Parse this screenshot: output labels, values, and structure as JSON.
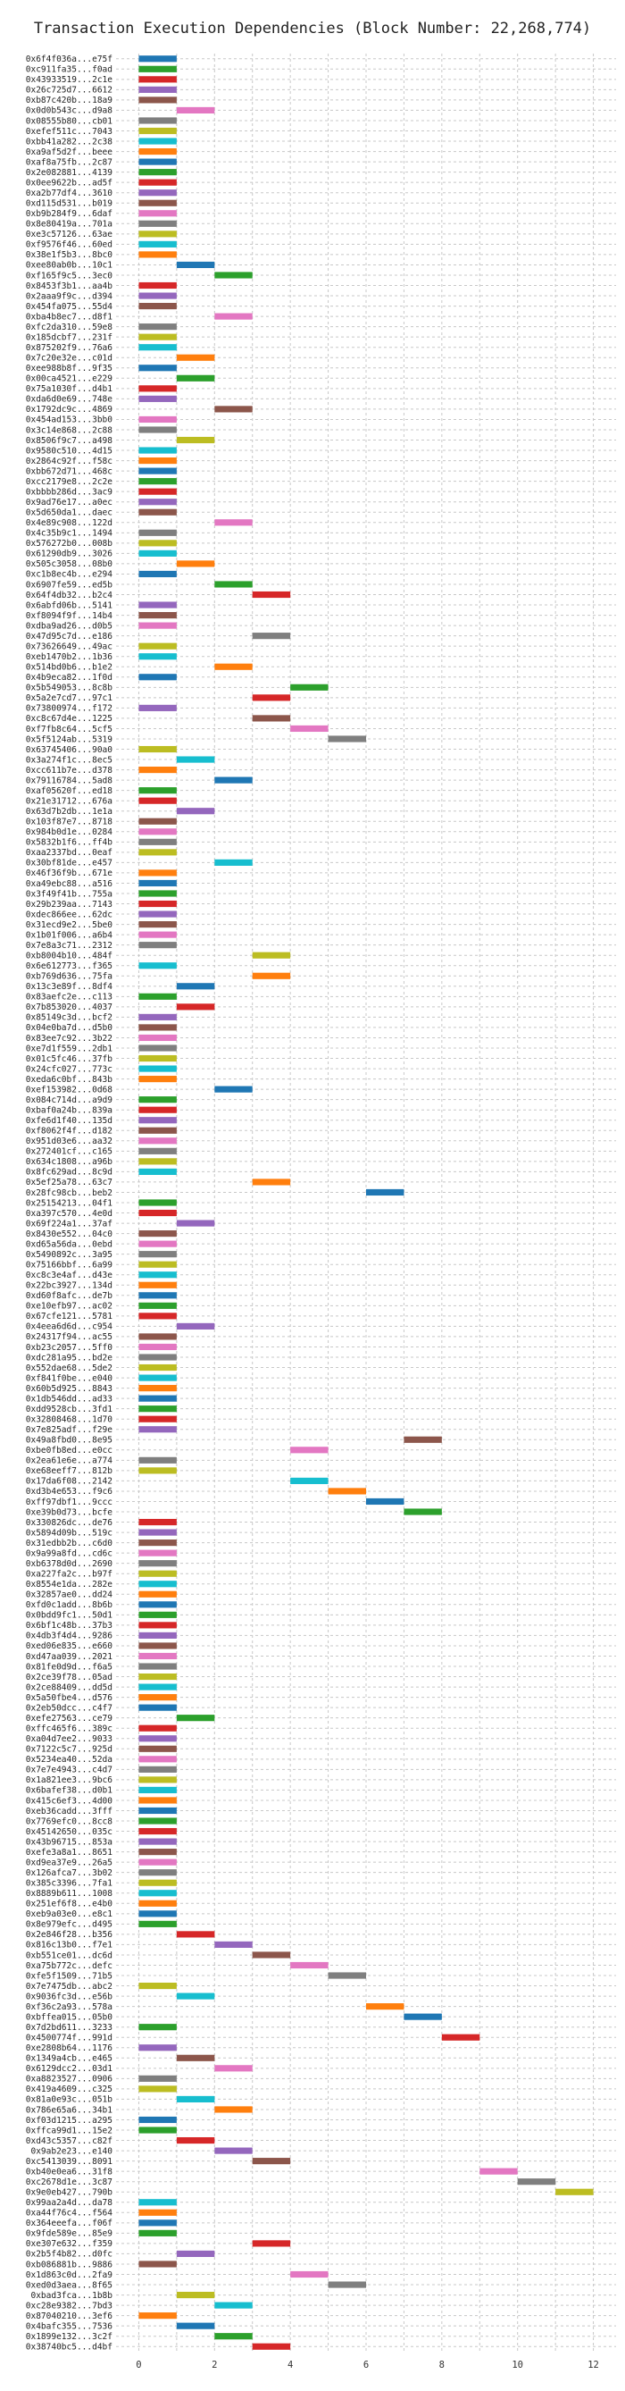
{
  "chart_data": {
    "type": "bar",
    "title": "Transaction Execution Dependencies (Block Number: 22,268,774)",
    "xlabel": "",
    "ylabel": "",
    "x_ticks": [
      0,
      2,
      4,
      6,
      8,
      10,
      12
    ],
    "xlim": [
      -0.6,
      12.6
    ],
    "grid": true,
    "bar_width": 1,
    "palette": [
      "#1f77b4",
      "#2ca02c",
      "#d62728",
      "#9467bd",
      "#8c564b",
      "#e377c2",
      "#7f7f7f",
      "#bcbd22",
      "#17becf",
      "#ff7f0e"
    ],
    "transactions": [
      {
        "hash": "0x6f4f036a...e75f",
        "start": 0
      },
      {
        "hash": "0xc911fa35...f0ad",
        "start": 0
      },
      {
        "hash": "0x43933519...2c1e",
        "start": 0
      },
      {
        "hash": "0x26c725d7...6612",
        "start": 0
      },
      {
        "hash": "0xb87c420b...18a9",
        "start": 0
      },
      {
        "hash": "0x0d0b543c...d9a8",
        "start": 1
      },
      {
        "hash": "0x08555b80...cb01",
        "start": 0
      },
      {
        "hash": "0xefef511c...7043",
        "start": 0
      },
      {
        "hash": "0xbb41a282...2c38",
        "start": 0
      },
      {
        "hash": "0xa9af5d2f...beee",
        "start": 0
      },
      {
        "hash": "0xaf8a75fb...2c87",
        "start": 0
      },
      {
        "hash": "0x2e082881...4139",
        "start": 0
      },
      {
        "hash": "0x0ee9622b...ad5f",
        "start": 0
      },
      {
        "hash": "0xa2b77df4...3610",
        "start": 0
      },
      {
        "hash": "0xd115d531...b019",
        "start": 0
      },
      {
        "hash": "0xb9b284f9...6daf",
        "start": 0
      },
      {
        "hash": "0x8e80419a...701a",
        "start": 0
      },
      {
        "hash": "0xe3c57126...63ae",
        "start": 0
      },
      {
        "hash": "0xf9576f46...60ed",
        "start": 0
      },
      {
        "hash": "0x38e1f5b3...8bc0",
        "start": 0
      },
      {
        "hash": "0xee80ab0b...10c1",
        "start": 1
      },
      {
        "hash": "0xf165f9c5...3ec0",
        "start": 2
      },
      {
        "hash": "0x8453f3b1...aa4b",
        "start": 0
      },
      {
        "hash": "0x2aaa9f9c...d394",
        "start": 0
      },
      {
        "hash": "0x454fa075...55d4",
        "start": 0
      },
      {
        "hash": "0xba4b8ec7...d8f1",
        "start": 2
      },
      {
        "hash": "0xfc2da310...59e8",
        "start": 0
      },
      {
        "hash": "0x185dcbf7...231f",
        "start": 0
      },
      {
        "hash": "0x875202f9...76a6",
        "start": 0
      },
      {
        "hash": "0x7c20e32e...c01d",
        "start": 1
      },
      {
        "hash": "0xee988b8f...9f35",
        "start": 0
      },
      {
        "hash": "0x00ca4521...e229",
        "start": 1
      },
      {
        "hash": "0x75a1030f...d4b1",
        "start": 0
      },
      {
        "hash": "0xda6d0e69...748e",
        "start": 0
      },
      {
        "hash": "0x1792dc9c...4869",
        "start": 2
      },
      {
        "hash": "0x454ad153...3bb0",
        "start": 0
      },
      {
        "hash": "0x3c14e868...2c88",
        "start": 0
      },
      {
        "hash": "0x8506f9c7...a498",
        "start": 1
      },
      {
        "hash": "0x9580c510...4d15",
        "start": 0
      },
      {
        "hash": "0x2864c92f...f58c",
        "start": 0
      },
      {
        "hash": "0xbb672d71...468c",
        "start": 0
      },
      {
        "hash": "0xcc2179e8...2c2e",
        "start": 0
      },
      {
        "hash": "0xbbbb286d...3ac9",
        "start": 0
      },
      {
        "hash": "0x9ad76e17...a0ec",
        "start": 0
      },
      {
        "hash": "0x5d650da1...daec",
        "start": 0
      },
      {
        "hash": "0x4e89c908...122d",
        "start": 2
      },
      {
        "hash": "0x4c35b9c1...1494",
        "start": 0
      },
      {
        "hash": "0x576272b0...008b",
        "start": 0
      },
      {
        "hash": "0x61290db9...3026",
        "start": 0
      },
      {
        "hash": "0x505c3058...08b0",
        "start": 1
      },
      {
        "hash": "0xc1b8ec4b...e294",
        "start": 0
      },
      {
        "hash": "0x6907fe59...ed5b",
        "start": 2
      },
      {
        "hash": "0x64f4db32...b2c4",
        "start": 3
      },
      {
        "hash": "0x6abfd06b...5141",
        "start": 0
      },
      {
        "hash": "0xf8094f9f...14b4",
        "start": 0
      },
      {
        "hash": "0xdba9ad26...d0b5",
        "start": 0
      },
      {
        "hash": "0x47d95c7d...e186",
        "start": 3
      },
      {
        "hash": "0x73626649...49ac",
        "start": 0
      },
      {
        "hash": "0xeb1470b2...1b36",
        "start": 0
      },
      {
        "hash": "0x514bd0b6...b1e2",
        "start": 2
      },
      {
        "hash": "0x4b9eca82...1f0d",
        "start": 0
      },
      {
        "hash": "0x5b549053...8c8b",
        "start": 4
      },
      {
        "hash": "0x5a2e7cd7...97c1",
        "start": 3
      },
      {
        "hash": "0x73800974...f172",
        "start": 0
      },
      {
        "hash": "0xc8c67d4e...1225",
        "start": 3
      },
      {
        "hash": "0xf7fb8c64...5cf5",
        "start": 4
      },
      {
        "hash": "0x5f5124ab...5319",
        "start": 5
      },
      {
        "hash": "0x63745406...90a0",
        "start": 0
      },
      {
        "hash": "0x3a274f1c...8ec5",
        "start": 1
      },
      {
        "hash": "0xcc611b7e...d378",
        "start": 0
      },
      {
        "hash": "0x79116784...5ad8",
        "start": 2
      },
      {
        "hash": "0xaf05620f...ed18",
        "start": 0
      },
      {
        "hash": "0x21e31712...676a",
        "start": 0
      },
      {
        "hash": "0x63d7b2db...1e1a",
        "start": 1
      },
      {
        "hash": "0x103f87e7...8718",
        "start": 0
      },
      {
        "hash": "0x984b0d1e...0284",
        "start": 0
      },
      {
        "hash": "0x5832b1f6...ff4b",
        "start": 0
      },
      {
        "hash": "0xaa2337bd...0eaf",
        "start": 0
      },
      {
        "hash": "0x30bf81de...e457",
        "start": 2
      },
      {
        "hash": "0x46f36f9b...671e",
        "start": 0
      },
      {
        "hash": "0xa49ebc88...a516",
        "start": 0
      },
      {
        "hash": "0x3f49f41b...755a",
        "start": 0
      },
      {
        "hash": "0x29b239aa...7143",
        "start": 0
      },
      {
        "hash": "0xdec866ee...62dc",
        "start": 0
      },
      {
        "hash": "0x31ecd9e2...5be0",
        "start": 0
      },
      {
        "hash": "0x1b01f006...a6b4",
        "start": 0
      },
      {
        "hash": "0x7e8a3c71...2312",
        "start": 0
      },
      {
        "hash": "0xb8004b10...484f",
        "start": 3
      },
      {
        "hash": "0x6e612773...f365",
        "start": 0
      },
      {
        "hash": "0xb769d636...75fa",
        "start": 3
      },
      {
        "hash": "0x13c3e89f...8df4",
        "start": 1
      },
      {
        "hash": "0x83aefc2e...c113",
        "start": 0
      },
      {
        "hash": "0x7b853020...4037",
        "start": 1
      },
      {
        "hash": "0x85149c3d...bcf2",
        "start": 0
      },
      {
        "hash": "0x04e0ba7d...d5b0",
        "start": 0
      },
      {
        "hash": "0x83ee7c92...3b22",
        "start": 0
      },
      {
        "hash": "0xe7d1f559...2db1",
        "start": 0
      },
      {
        "hash": "0x01c5fc46...37fb",
        "start": 0
      },
      {
        "hash": "0x24cfc027...773c",
        "start": 0
      },
      {
        "hash": "0xeda6c0bf...843b",
        "start": 0
      },
      {
        "hash": "0xef153982...0d68",
        "start": 2
      },
      {
        "hash": "0x084c714d...a9d9",
        "start": 0
      },
      {
        "hash": "0xbaf0a24b...839a",
        "start": 0
      },
      {
        "hash": "0xfe6d1f40...135d",
        "start": 0
      },
      {
        "hash": "0xf8062f4f...d182",
        "start": 0
      },
      {
        "hash": "0x951d03e6...aa32",
        "start": 0
      },
      {
        "hash": "0x272401cf...c165",
        "start": 0
      },
      {
        "hash": "0x634c1808...a96b",
        "start": 0
      },
      {
        "hash": "0x8fc629ad...8c9d",
        "start": 0
      },
      {
        "hash": "0x5ef25a78...63c7",
        "start": 3
      },
      {
        "hash": "0x28fc98cb...beb2",
        "start": 6
      },
      {
        "hash": "0x25154213...04f1",
        "start": 0
      },
      {
        "hash": "0xa397c570...4e0d",
        "start": 0
      },
      {
        "hash": "0x69f224a1...37af",
        "start": 1
      },
      {
        "hash": "0x8430e552...04c0",
        "start": 0
      },
      {
        "hash": "0xd65a56da...0ebd",
        "start": 0
      },
      {
        "hash": "0x5490892c...3a95",
        "start": 0
      },
      {
        "hash": "0x75166bbf...6a99",
        "start": 0
      },
      {
        "hash": "0xc8c3e4af...d43e",
        "start": 0
      },
      {
        "hash": "0x22bc3927...134d",
        "start": 0
      },
      {
        "hash": "0xd60f8afc...de7b",
        "start": 0
      },
      {
        "hash": "0xe10efb97...ac02",
        "start": 0
      },
      {
        "hash": "0x67cfe121...5781",
        "start": 0
      },
      {
        "hash": "0x4eea6d6d...c954",
        "start": 1
      },
      {
        "hash": "0x24317f94...ac55",
        "start": 0
      },
      {
        "hash": "0xb23c2057...5ff0",
        "start": 0
      },
      {
        "hash": "0xdc281a95...bd2e",
        "start": 0
      },
      {
        "hash": "0x552dae68...5de2",
        "start": 0
      },
      {
        "hash": "0xf841f0be...e040",
        "start": 0
      },
      {
        "hash": "0x60b5d925...8843",
        "start": 0
      },
      {
        "hash": "0x1db546dd...ad33",
        "start": 0
      },
      {
        "hash": "0xdd9528cb...3fd1",
        "start": 0
      },
      {
        "hash": "0x32808468...1d70",
        "start": 0
      },
      {
        "hash": "0x7e825adf...f29e",
        "start": 0
      },
      {
        "hash": "0x49a8fbd0...8e95",
        "start": 7
      },
      {
        "hash": "0xbe0fb8ed...e0cc",
        "start": 4
      },
      {
        "hash": "0x2ea61e6e...a774",
        "start": 0
      },
      {
        "hash": "0xe68eeff7...812b",
        "start": 0
      },
      {
        "hash": "0x17da6f08...2142",
        "start": 4
      },
      {
        "hash": "0xd3b4e653...f9c6",
        "start": 5
      },
      {
        "hash": "0xff97dbf1...9ccc",
        "start": 6
      },
      {
        "hash": "0xe39b0d73...bcfe",
        "start": 7
      },
      {
        "hash": "0x330826dc...de76",
        "start": 0
      },
      {
        "hash": "0x5894d09b...519c",
        "start": 0
      },
      {
        "hash": "0x31edbb2b...c6d0",
        "start": 0
      },
      {
        "hash": "0x9a99a8fd...cd6c",
        "start": 0
      },
      {
        "hash": "0xb6378d0d...2690",
        "start": 0
      },
      {
        "hash": "0xa227fa2c...b97f",
        "start": 0
      },
      {
        "hash": "0x8554e1da...282e",
        "start": 0
      },
      {
        "hash": "0x32857ae0...dd24",
        "start": 0
      },
      {
        "hash": "0xfd0c1add...8b6b",
        "start": 0
      },
      {
        "hash": "0x0bdd9fc1...50d1",
        "start": 0
      },
      {
        "hash": "0x6bf1c48b...37b3",
        "start": 0
      },
      {
        "hash": "0x4db3f4d4...9286",
        "start": 0
      },
      {
        "hash": "0xed06e835...e660",
        "start": 0
      },
      {
        "hash": "0xd47aa039...2021",
        "start": 0
      },
      {
        "hash": "0x81fe0d9d...f6a5",
        "start": 0
      },
      {
        "hash": "0x2ce39f78...05ad",
        "start": 0
      },
      {
        "hash": "0x2ce88409...dd5d",
        "start": 0
      },
      {
        "hash": "0x5a50fbe4...d576",
        "start": 0
      },
      {
        "hash": "0x2eb50dcc...c4f7",
        "start": 0
      },
      {
        "hash": "0xefe27563...ce79",
        "start": 1
      },
      {
        "hash": "0xffc465f6...389c",
        "start": 0
      },
      {
        "hash": "0xa04d7ee2...9033",
        "start": 0
      },
      {
        "hash": "0x7122c5c7...925d",
        "start": 0
      },
      {
        "hash": "0x5234ea40...52da",
        "start": 0
      },
      {
        "hash": "0x7e7e4943...c4d7",
        "start": 0
      },
      {
        "hash": "0x1a821ee3...9bc6",
        "start": 0
      },
      {
        "hash": "0x6bafef38...d0b1",
        "start": 0
      },
      {
        "hash": "0x415c6ef3...4d00",
        "start": 0
      },
      {
        "hash": "0xeb36cadd...3fff",
        "start": 0
      },
      {
        "hash": "0x7769efc0...8cc8",
        "start": 0
      },
      {
        "hash": "0x45142650...035c",
        "start": 0
      },
      {
        "hash": "0x43b96715...853a",
        "start": 0
      },
      {
        "hash": "0xefe3a8a1...8651",
        "start": 0
      },
      {
        "hash": "0xd9ea37e9...26a5",
        "start": 0
      },
      {
        "hash": "0x126afca7...3b02",
        "start": 0
      },
      {
        "hash": "0x385c3396...7fa1",
        "start": 0
      },
      {
        "hash": "0x8889b611...1008",
        "start": 0
      },
      {
        "hash": "0x251ef6f8...e4b0",
        "start": 0
      },
      {
        "hash": "0xeb9a03e0...e8c1",
        "start": 0
      },
      {
        "hash": "0x8e979efc...d495",
        "start": 0
      },
      {
        "hash": "0x2e846f28...b356",
        "start": 1
      },
      {
        "hash": "0x816c13b0...f7e1",
        "start": 2
      },
      {
        "hash": "0xb551ce01...dc6d",
        "start": 3
      },
      {
        "hash": "0xa75b772c...defc",
        "start": 4
      },
      {
        "hash": "0xfe5f1509...71b5",
        "start": 5
      },
      {
        "hash": "0x7e7475db...abc2",
        "start": 0
      },
      {
        "hash": "0x9036fc3d...e56b",
        "start": 1
      },
      {
        "hash": "0xf36c2a93...578a",
        "start": 6
      },
      {
        "hash": "0xbffea015...05b0",
        "start": 7
      },
      {
        "hash": "0x7d2bd611...3233",
        "start": 0
      },
      {
        "hash": "0x4500774f...991d",
        "start": 8
      },
      {
        "hash": "0xe2808b64...1176",
        "start": 0
      },
      {
        "hash": "0x1349a4cb...e465",
        "start": 1
      },
      {
        "hash": "0x6129dcc2...03d1",
        "start": 2
      },
      {
        "hash": "0xa8823527...0906",
        "start": 0
      },
      {
        "hash": "0x419a4609...c325",
        "start": 0
      },
      {
        "hash": "0x81a0e93c...051b",
        "start": 1
      },
      {
        "hash": "0x786e65a6...34b1",
        "start": 2
      },
      {
        "hash": "0xf03d1215...a295",
        "start": 0
      },
      {
        "hash": "0xffca99d1...15e2",
        "start": 0
      },
      {
        "hash": "0xd43c5357...c82f",
        "start": 1
      },
      {
        "hash": "0x9ab2e23...e140",
        "start": 2
      },
      {
        "hash": "0xc5413039...8091",
        "start": 3
      },
      {
        "hash": "0xb40e0ea6...31f8",
        "start": 9
      },
      {
        "hash": "0xc2678d1e...3c87",
        "start": 10
      },
      {
        "hash": "0x9e0eb427...790b",
        "start": 11
      },
      {
        "hash": "0x99aa2a4d...da78",
        "start": 0
      },
      {
        "hash": "0xa44f76c4...f564",
        "start": 0
      },
      {
        "hash": "0x364eeefa...f06f",
        "start": 0
      },
      {
        "hash": "0x9fde589e...85e9",
        "start": 0
      },
      {
        "hash": "0xe307e632...f359",
        "start": 3
      },
      {
        "hash": "0x2b5f4b82...d0fc",
        "start": 1
      },
      {
        "hash": "0xb086881b...9886",
        "start": 0
      },
      {
        "hash": "0x1d863c0d...2fa9",
        "start": 4
      },
      {
        "hash": "0xed0d3aea...8f65",
        "start": 5
      },
      {
        "hash": "0xbad3fca...1b8b",
        "start": 1
      },
      {
        "hash": "0xc28e9382...7bd3",
        "start": 2
      },
      {
        "hash": "0x87040210...3ef6",
        "start": 0
      },
      {
        "hash": "0x4bafc355...7536",
        "start": 1
      },
      {
        "hash": "0x1899e132...3c2f",
        "start": 2
      },
      {
        "hash": "0x38740bc5...d4bf",
        "start": 3
      }
    ]
  }
}
